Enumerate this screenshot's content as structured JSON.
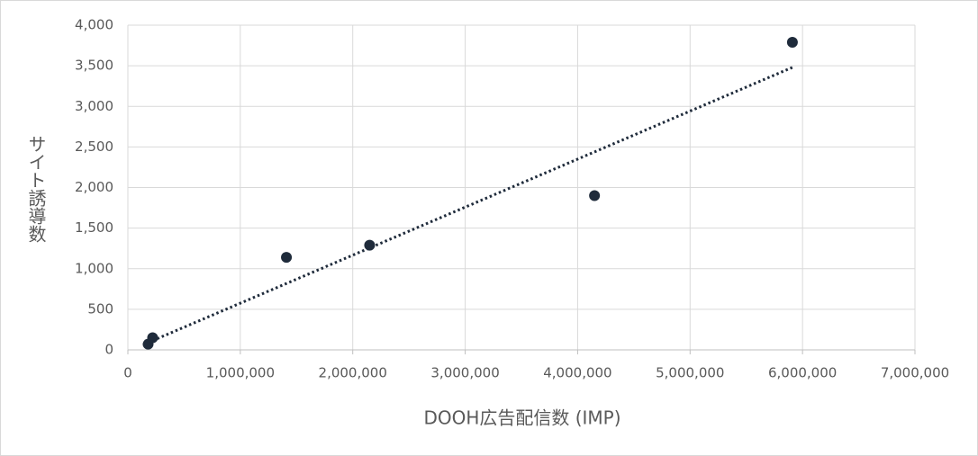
{
  "chart_data": {
    "type": "scatter",
    "x_label": "DOOH広告配信数 (IMP)",
    "y_label": "サイト誘導数",
    "x": [
      180000,
      220000,
      1410000,
      2150000,
      4150000,
      5910000
    ],
    "values": [
      70,
      150,
      1140,
      1290,
      1900,
      3790
    ],
    "color": "#1f2b3b",
    "trendline": {
      "x": [
        180000,
        5910000
      ],
      "y": [
        90,
        3480
      ],
      "color": "#1f2b3b",
      "style": "dotted"
    },
    "xlim": [
      0,
      7000000
    ],
    "xticks": [
      0,
      {
        "value": 1000000,
        "label": "1,000,000"
      },
      {
        "value": 2000000,
        "label": "2,000,000"
      },
      {
        "value": 3000000,
        "label": "3,000,000"
      },
      {
        "value": 4000000,
        "label": "4,000,000"
      },
      {
        "value": 5000000,
        "label": "5,000,000"
      },
      {
        "value": 6000000,
        "label": "6,000,000"
      },
      {
        "value": 7000000,
        "label": "7,000,000"
      }
    ],
    "ylim": [
      0,
      4000
    ],
    "yticks": [
      0,
      500,
      {
        "value": 1000,
        "label": "1,000"
      },
      {
        "value": 1500,
        "label": "1,500"
      },
      {
        "value": 2000,
        "label": "2,000"
      },
      {
        "value": 2500,
        "label": "2,500"
      },
      {
        "value": 3000,
        "label": "3,000"
      },
      {
        "value": 3500,
        "label": "3,500"
      },
      {
        "value": 4000,
        "label": "4,000"
      }
    ],
    "grid": true
  }
}
